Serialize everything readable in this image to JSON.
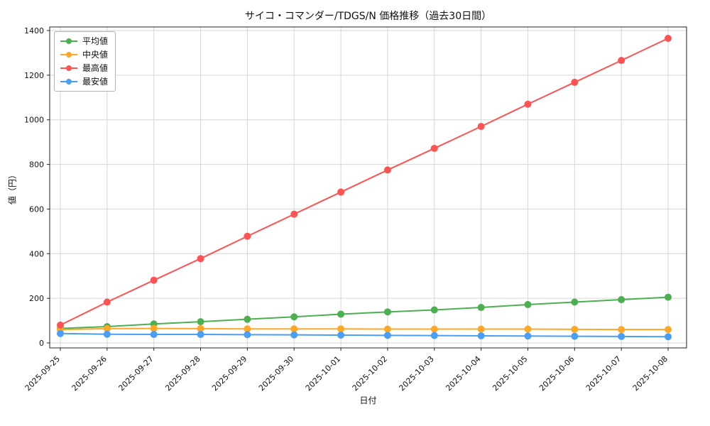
{
  "chart_data": {
    "type": "line",
    "title": "サイコ・コマンダー/TDGS/N 価格推移（過去30日間）",
    "xlabel": "日付",
    "ylabel": "値（円）",
    "ylim": [
      0,
      1400
    ],
    "yticks": [
      0,
      200,
      400,
      600,
      800,
      1000,
      1200,
      1400
    ],
    "grid": true,
    "grid_color": "#d6d6d6",
    "axis_color": "#222222",
    "legend_position": "upper-left",
    "categories": [
      "2025-09-25",
      "2025-09-26",
      "2025-09-27",
      "2025-09-28",
      "2025-09-29",
      "2025-09-30",
      "2025-10-01",
      "2025-10-02",
      "2025-10-03",
      "2025-10-04",
      "2025-10-05",
      "2025-10-06",
      "2025-10-07",
      "2025-10-08"
    ],
    "series": [
      {
        "key": "average",
        "name": "平均値",
        "color": "#4caf50",
        "values": [
          65,
          73,
          85,
          95,
          106,
          117,
          129,
          139,
          148,
          159,
          172,
          183,
          194,
          205
        ]
      },
      {
        "key": "median",
        "name": "中央値",
        "color": "#ffa726",
        "values": [
          60,
          64,
          65,
          64,
          63,
          63,
          63,
          62,
          62,
          62,
          62,
          61,
          60,
          60
        ]
      },
      {
        "key": "max",
        "name": "最高値",
        "color": "#ff5252",
        "values": [
          80,
          183,
          281,
          378,
          478,
          577,
          676,
          775,
          872,
          970,
          1070,
          1168,
          1266,
          1365
        ]
      },
      {
        "key": "min",
        "name": "最安値",
        "color": "#4a9ff5",
        "values": [
          42,
          39,
          38,
          38,
          37,
          36,
          35,
          34,
          33,
          32,
          31,
          30,
          29,
          28
        ]
      }
    ]
  }
}
